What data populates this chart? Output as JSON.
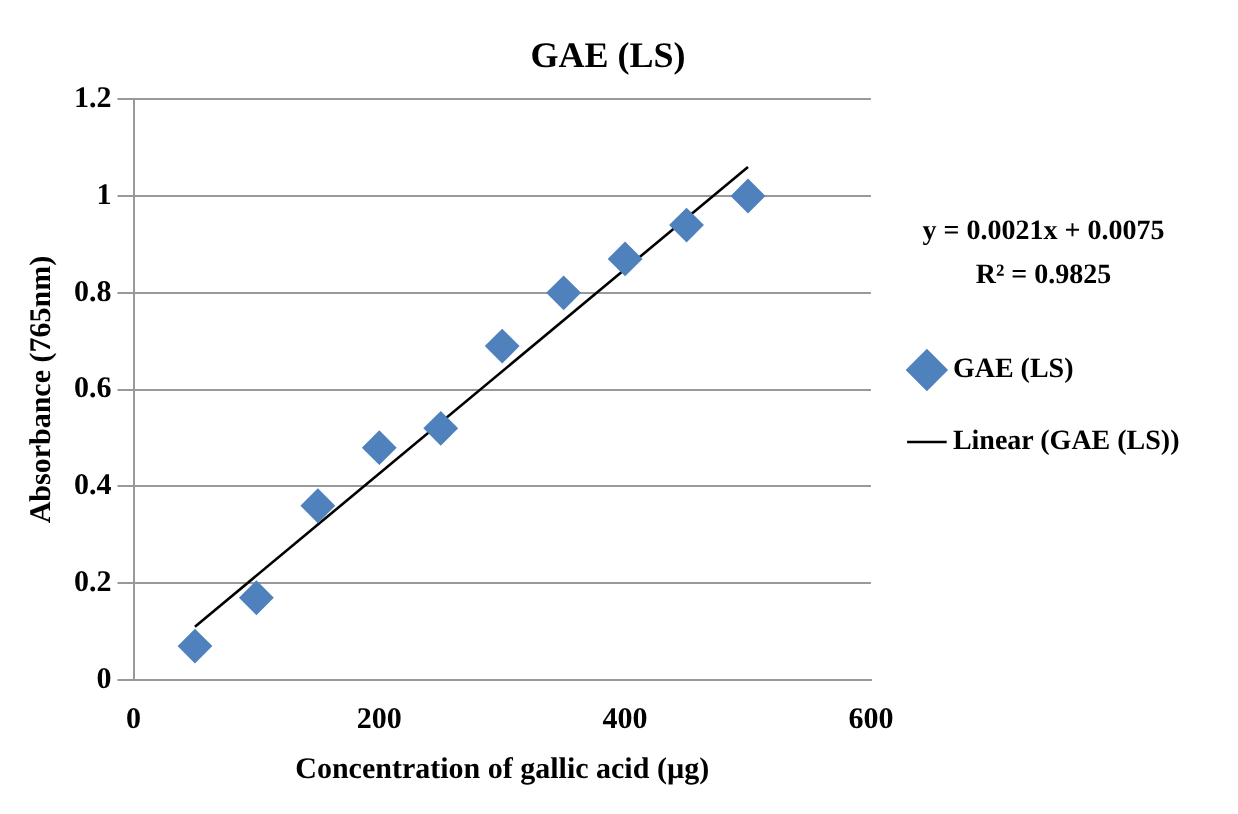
{
  "chart_data": {
    "type": "scatter",
    "title": "GAE (LS)",
    "xlabel": "Concentration of gallic acid (µg)",
    "ylabel": "Absorbance (765nm)",
    "x": [
      50,
      100,
      150,
      200,
      250,
      300,
      350,
      400,
      450,
      500
    ],
    "series": [
      {
        "name": "GAE (LS)",
        "type": "scatter",
        "color": "#4f81bd",
        "marker": "diamond",
        "values": [
          0.07,
          0.17,
          0.36,
          0.48,
          0.52,
          0.69,
          0.8,
          0.87,
          0.94,
          1.0
        ]
      },
      {
        "name": "Linear (GAE (LS))",
        "type": "line",
        "color": "#000000",
        "marker": "none",
        "line_style": "solid",
        "x": [
          50,
          500
        ],
        "values": [
          0.11,
          1.06
        ]
      }
    ],
    "xlim": [
      0,
      600
    ],
    "xticks": [
      0,
      200,
      400,
      600
    ],
    "ylim": [
      0,
      1.2
    ],
    "yticks": [
      0,
      0.2,
      0.4,
      0.6,
      0.8,
      1,
      1.2
    ],
    "grid": "y",
    "legend": "right",
    "annotations": [
      "y = 0.0021x + 0.0075",
      "R² = 0.9825"
    ]
  }
}
